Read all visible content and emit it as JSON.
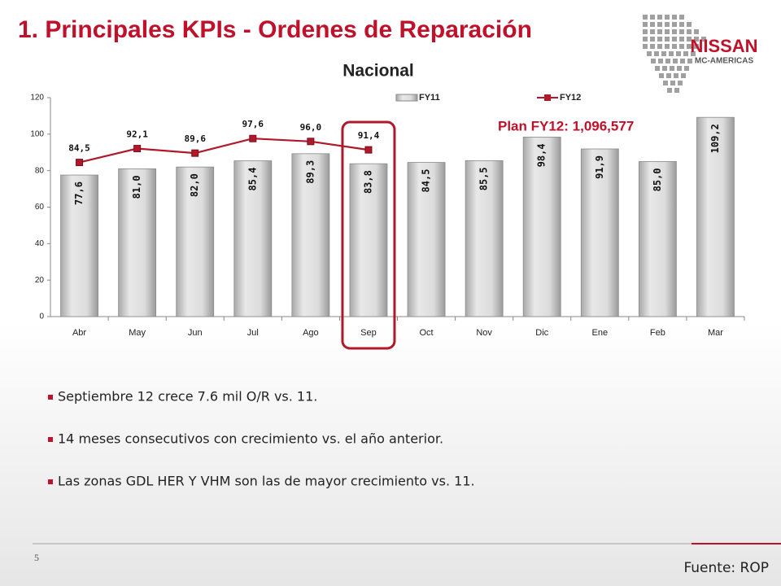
{
  "header": {
    "title": "1. Principales KPIs - Ordenes de Reparación",
    "logo": "NISSAN",
    "logo_sub": "MC-AMERICAS"
  },
  "chart_data": {
    "type": "bar",
    "title": "Nacional",
    "categories": [
      "Abr",
      "May",
      "Jun",
      "Jul",
      "Ago",
      "Sep",
      "Oct",
      "Nov",
      "Dic",
      "Ene",
      "Feb",
      "Mar"
    ],
    "series": [
      {
        "name": "FY11",
        "type": "bar",
        "color": "#c8c8c8",
        "values": [
          77.6,
          81.0,
          82.0,
          85.4,
          89.3,
          83.8,
          84.5,
          85.5,
          98.4,
          91.9,
          85.0,
          109.2
        ],
        "value_labels": [
          "77,6",
          "81,0",
          "82,0",
          "85,4",
          "89,3",
          "83,8",
          "84,5",
          "85,5",
          "98,4",
          "91,9",
          "85,0",
          "109,2"
        ]
      },
      {
        "name": "FY12",
        "type": "line",
        "color": "#b0192a",
        "values": [
          84.5,
          92.1,
          89.6,
          97.6,
          96.0,
          91.4,
          null,
          null,
          null,
          null,
          null,
          null
        ],
        "value_labels": [
          "84,5",
          "92,1",
          "89,6",
          "97,6",
          "96,0",
          "91,4",
          null,
          null,
          null,
          null,
          null,
          null
        ]
      }
    ],
    "ylim": [
      0,
      120
    ],
    "yticks": [
      0,
      20,
      40,
      60,
      80,
      100,
      120
    ],
    "grid": false,
    "legend": "top",
    "annotation": "Plan FY12: 1,096,577",
    "highlight": "Sep"
  },
  "bullets": [
    "Septiembre 12 crece 7.6 mil O/R vs. 11.",
    "14 meses consecutivos con crecimiento vs. el año anterior.",
    "Las zonas GDL HER Y VHM son las de mayor crecimiento vs. 11."
  ],
  "footer": {
    "page": "5",
    "source": "Fuente: ROP"
  }
}
